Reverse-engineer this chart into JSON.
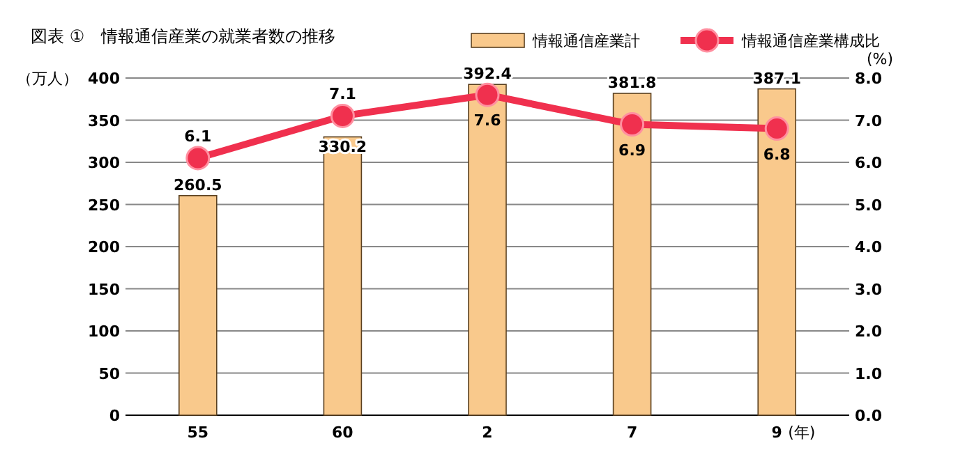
{
  "chart_data": {
    "type": "bar",
    "title": "図表 ①　情報通信産業の就業者数の推移",
    "ylabel": "（万人）",
    "y2label": "(%)",
    "xlabel": "(年)",
    "categories": [
      "55",
      "60",
      "2",
      "7",
      "9"
    ],
    "series": [
      {
        "name": "情報通信産業計",
        "color": "#f9c98c",
        "values": [
          260.5,
          330.2,
          392.4,
          381.8,
          387.1
        ]
      },
      {
        "name": "情報通信産業構成比",
        "type": "line",
        "axis": "y2",
        "color": "#f0304e",
        "marker": "circle",
        "values": [
          6.1,
          7.1,
          7.6,
          6.9,
          6.8
        ]
      }
    ],
    "ylim": [
      0,
      400
    ],
    "yticks": [
      0,
      50,
      100,
      150,
      200,
      250,
      300,
      350,
      400
    ],
    "y2lim": [
      0,
      8
    ],
    "y2ticks": [
      {
        "value": 0,
        "label": "0.0"
      },
      {
        "value": 1,
        "label": "1.0"
      },
      {
        "value": 2,
        "label": "2.0"
      },
      {
        "value": 3,
        "label": "3.0"
      },
      {
        "value": 4,
        "label": "4.0"
      },
      {
        "value": 5,
        "label": "5.0"
      },
      {
        "value": 6,
        "label": "6.0"
      },
      {
        "value": 7,
        "label": "7.0"
      },
      {
        "value": 8,
        "label": "8.0"
      }
    ],
    "grid": "y",
    "legend": "top right",
    "data_labels": true
  }
}
